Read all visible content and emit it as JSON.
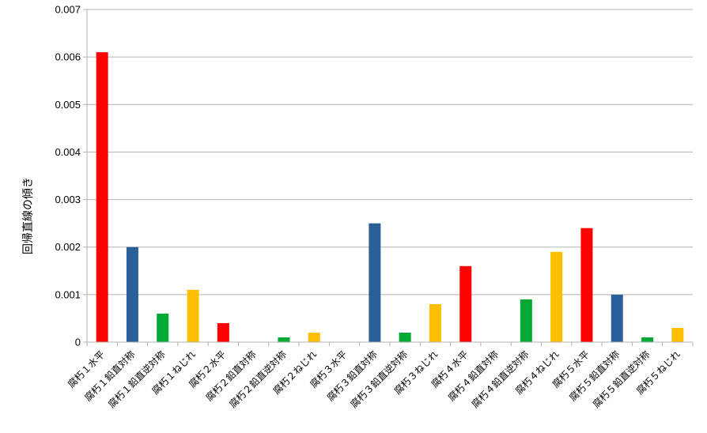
{
  "chart_data": {
    "type": "bar",
    "title": "",
    "xlabel": "",
    "ylabel": "回帰直線の傾き",
    "ylim": [
      0,
      0.007
    ],
    "yticks": [
      "0",
      "0.001",
      "0.002",
      "0.003",
      "0.004",
      "0.005",
      "0.006",
      "0.007"
    ],
    "grid": true,
    "legend": "none",
    "categories": [
      "腐朽１水平",
      "腐朽１鉛直対称",
      "腐朽１鉛直逆対称",
      "腐朽１ねじれ",
      "腐朽２水平",
      "腐朽２鉛直対称",
      "腐朽２鉛直逆対称",
      "腐朽２ねじれ",
      "腐朽３水平",
      "腐朽３鉛直対称",
      "腐朽３鉛直逆対称",
      "腐朽３ねじれ",
      "腐朽４水平",
      "腐朽４鉛直対称",
      "腐朽４鉛直逆対称",
      "腐朽４ねじれ",
      "腐朽５水平",
      "腐朽５鉛直対称",
      "腐朽５鉛直逆対称",
      "腐朽５ねじれ"
    ],
    "values": [
      0.0061,
      0.002,
      0.0006,
      0.0011,
      0.0004,
      0,
      0.0001,
      0.0002,
      0,
      0.0025,
      0.0002,
      0.0008,
      0.0016,
      0,
      0.0009,
      0.0019,
      0.0024,
      0.001,
      0.0001,
      0.0003
    ],
    "bar_colors": [
      "#ff0000",
      "#2a6099",
      "#00a933",
      "#ffbf00"
    ]
  }
}
